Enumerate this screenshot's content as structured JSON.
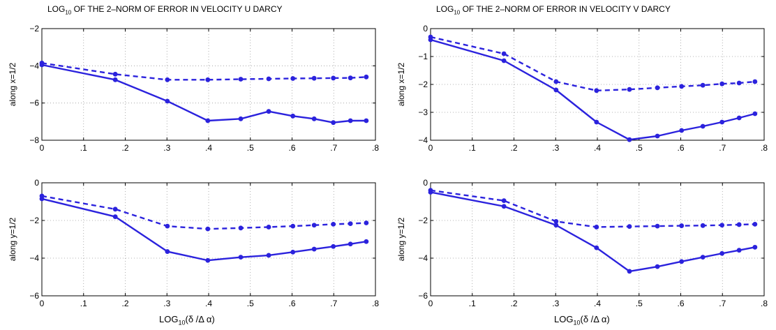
{
  "figure": {
    "titles": [
      {
        "pre": "LOG",
        "sub": "10",
        "post": " OF THE 2–NORM OF ERROR IN VELOCITY U DARCY"
      },
      {
        "pre": "LOG",
        "sub": "10",
        "post": " OF THE 2–NORM OF ERROR IN VELOCITY V DARCY"
      }
    ],
    "xlabel": {
      "pre": "LOG",
      "sub": "10",
      "post": "(δ /Δ α)"
    },
    "line_color": "#2b22dd"
  },
  "chart_data": [
    {
      "type": "line",
      "title": "LOG10 OF THE 2–NORM OF ERROR IN VELOCITY U DARCY",
      "ylabel": "along x=1/2",
      "xlim": [
        0,
        0.8
      ],
      "ylim": [
        -8,
        -2
      ],
      "xticks": [
        0,
        0.1,
        0.2,
        0.3,
        0.4,
        0.5,
        0.6,
        0.7,
        0.8
      ],
      "yticks": [
        -8,
        -6,
        -4,
        -2
      ],
      "grid": true,
      "x": [
        0,
        0.176,
        0.301,
        0.398,
        0.477,
        0.544,
        0.602,
        0.653,
        0.699,
        0.74,
        0.778
      ],
      "series": [
        {
          "style": "solid",
          "values": [
            -3.95,
            -4.75,
            -5.9,
            -6.95,
            -6.85,
            -6.45,
            -6.7,
            -6.85,
            -7.05,
            -6.95,
            -6.95
          ]
        },
        {
          "style": "dashed",
          "values": [
            -3.85,
            -4.45,
            -4.75,
            -4.75,
            -4.72,
            -4.7,
            -4.68,
            -4.67,
            -4.66,
            -4.65,
            -4.6
          ]
        }
      ]
    },
    {
      "type": "line",
      "title": "LOG10 OF THE 2–NORM OF ERROR IN VELOCITY V DARCY",
      "ylabel": "along x=1/2",
      "xlim": [
        0,
        0.8
      ],
      "ylim": [
        -4,
        0
      ],
      "xticks": [
        0,
        0.1,
        0.2,
        0.3,
        0.4,
        0.5,
        0.6,
        0.7,
        0.8
      ],
      "yticks": [
        -4,
        -3,
        -2,
        -1,
        0
      ],
      "grid": true,
      "x": [
        0,
        0.176,
        0.301,
        0.398,
        0.477,
        0.544,
        0.602,
        0.653,
        0.699,
        0.74,
        0.778
      ],
      "series": [
        {
          "style": "solid",
          "values": [
            -0.4,
            -1.15,
            -2.2,
            -3.35,
            -3.98,
            -3.85,
            -3.65,
            -3.5,
            -3.35,
            -3.2,
            -3.05
          ]
        },
        {
          "style": "dashed",
          "values": [
            -0.3,
            -0.9,
            -1.9,
            -2.22,
            -2.18,
            -2.12,
            -2.07,
            -2.03,
            -1.98,
            -1.95,
            -1.9
          ]
        }
      ]
    },
    {
      "type": "line",
      "title": "",
      "ylabel": "along y=1/2",
      "xlim": [
        0,
        0.8
      ],
      "ylim": [
        -6,
        0
      ],
      "xticks": [
        0,
        0.1,
        0.2,
        0.3,
        0.4,
        0.5,
        0.6,
        0.7,
        0.8
      ],
      "yticks": [
        -6,
        -4,
        -2,
        0
      ],
      "grid": true,
      "x": [
        0,
        0.176,
        0.301,
        0.398,
        0.477,
        0.544,
        0.602,
        0.653,
        0.699,
        0.74,
        0.778
      ],
      "series": [
        {
          "style": "solid",
          "values": [
            -0.85,
            -1.8,
            -3.65,
            -4.12,
            -3.95,
            -3.85,
            -3.68,
            -3.52,
            -3.38,
            -3.25,
            -3.12
          ]
        },
        {
          "style": "dashed",
          "values": [
            -0.7,
            -1.4,
            -2.3,
            -2.45,
            -2.4,
            -2.35,
            -2.3,
            -2.25,
            -2.2,
            -2.17,
            -2.13
          ]
        }
      ]
    },
    {
      "type": "line",
      "title": "",
      "ylabel": "along y=1/2",
      "xlim": [
        0,
        0.8
      ],
      "ylim": [
        -6,
        0
      ],
      "xticks": [
        0,
        0.1,
        0.2,
        0.3,
        0.4,
        0.5,
        0.6,
        0.7,
        0.8
      ],
      "yticks": [
        -6,
        -4,
        -2,
        0
      ],
      "grid": true,
      "x": [
        0,
        0.176,
        0.301,
        0.398,
        0.477,
        0.544,
        0.602,
        0.653,
        0.699,
        0.74,
        0.778
      ],
      "series": [
        {
          "style": "solid",
          "values": [
            -0.5,
            -1.25,
            -2.25,
            -3.45,
            -4.7,
            -4.45,
            -4.18,
            -3.95,
            -3.75,
            -3.58,
            -3.42
          ]
        },
        {
          "style": "dashed",
          "values": [
            -0.4,
            -0.95,
            -2.05,
            -2.35,
            -2.32,
            -2.3,
            -2.28,
            -2.27,
            -2.25,
            -2.22,
            -2.2
          ]
        }
      ]
    }
  ]
}
